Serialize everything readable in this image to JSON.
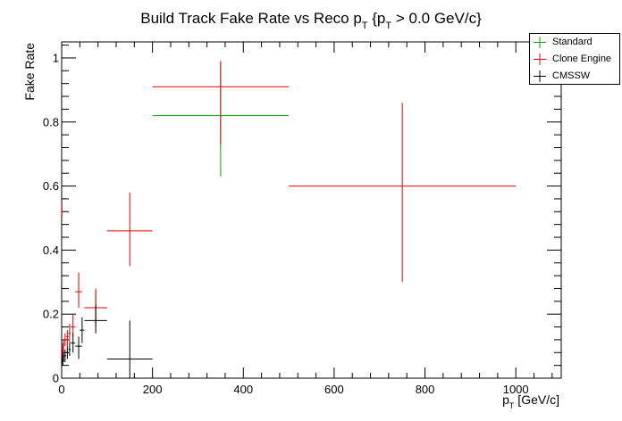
{
  "chart_data": {
    "type": "scatter",
    "title": {
      "main": "Build Track Fake Rate vs Reco p",
      "sub": "T",
      "tail": " {p",
      "sub2": "T",
      "tail2": " > 0.0 GeV/c}"
    },
    "xlabel": {
      "main": "p",
      "sub": "T",
      "tail": " [GeV/c]"
    },
    "ylabel": "Fake Rate",
    "xlim": [
      0,
      1100
    ],
    "ylim": [
      0,
      1.05
    ],
    "x_ticks": [
      0,
      200,
      400,
      600,
      800,
      1000
    ],
    "y_ticks": [
      0,
      0.2,
      0.4,
      0.6,
      0.8,
      1
    ],
    "x_tick_labels": [
      "0",
      "200",
      "400",
      "600",
      "800",
      "1000"
    ],
    "y_tick_labels": [
      "0",
      "0.2",
      "0.4",
      "0.6",
      "0.8",
      "1"
    ],
    "grid": false,
    "legend_position": "top-right",
    "series": [
      {
        "name": "Standard",
        "color": "#00aa00",
        "points": [
          {
            "x": 350,
            "xlo": 200,
            "xhi": 500,
            "y": 0.82,
            "ylo": 0.63,
            "yhi": 0.99
          },
          {
            "x": 75,
            "xlo": 50,
            "xhi": 100,
            "y": 0.22,
            "ylo": 0.17,
            "yhi": 0.27
          }
        ]
      },
      {
        "name": "Clone Engine",
        "color": "#dd0000",
        "points": [
          {
            "x": 750,
            "xlo": 500,
            "xhi": 1000,
            "y": 0.6,
            "ylo": 0.3,
            "yhi": 0.86
          },
          {
            "x": 350,
            "xlo": 200,
            "xhi": 500,
            "y": 0.91,
            "ylo": 0.73,
            "yhi": 0.99
          },
          {
            "x": 150,
            "xlo": 100,
            "xhi": 200,
            "y": 0.46,
            "ylo": 0.35,
            "yhi": 0.58
          },
          {
            "x": 75,
            "xlo": 50,
            "xhi": 100,
            "y": 0.22,
            "ylo": 0.16,
            "yhi": 0.28
          },
          {
            "x": 37.5,
            "xlo": 30,
            "xhi": 45,
            "y": 0.27,
            "ylo": 0.22,
            "yhi": 0.33
          },
          {
            "x": 25,
            "xlo": 20,
            "xhi": 30,
            "y": 0.16,
            "ylo": 0.13,
            "yhi": 0.2
          },
          {
            "x": 17.5,
            "xlo": 15,
            "xhi": 20,
            "y": 0.14,
            "ylo": 0.11,
            "yhi": 0.17
          },
          {
            "x": 12.5,
            "xlo": 10,
            "xhi": 15,
            "y": 0.13,
            "ylo": 0.1,
            "yhi": 0.15
          },
          {
            "x": 7.5,
            "xlo": 5,
            "xhi": 10,
            "y": 0.12,
            "ylo": 0.1,
            "yhi": 0.14
          },
          {
            "x": 4,
            "xlo": 3,
            "xhi": 5,
            "y": 0.1,
            "ylo": 0.08,
            "yhi": 0.12
          },
          {
            "x": 2.5,
            "xlo": 2,
            "xhi": 3,
            "y": 0.09,
            "ylo": 0.07,
            "yhi": 0.11
          },
          {
            "x": 1.5,
            "xlo": 1,
            "xhi": 2,
            "y": 0.07,
            "ylo": 0.06,
            "yhi": 0.09
          },
          {
            "x": 0.5,
            "xlo": 0,
            "xhi": 1,
            "y": 0.52,
            "ylo": 0.5,
            "yhi": 0.55
          }
        ]
      },
      {
        "name": "CMSSW",
        "color": "#000000",
        "points": [
          {
            "x": 150,
            "xlo": 100,
            "xhi": 200,
            "y": 0.06,
            "ylo": 0.0,
            "yhi": 0.18
          },
          {
            "x": 75,
            "xlo": 50,
            "xhi": 100,
            "y": 0.18,
            "ylo": 0.14,
            "yhi": 0.23
          },
          {
            "x": 45,
            "xlo": 40,
            "xhi": 50,
            "y": 0.15,
            "ylo": 0.11,
            "yhi": 0.19
          },
          {
            "x": 37.5,
            "xlo": 30,
            "xhi": 45,
            "y": 0.1,
            "ylo": 0.06,
            "yhi": 0.13
          },
          {
            "x": 25,
            "xlo": 20,
            "xhi": 30,
            "y": 0.11,
            "ylo": 0.08,
            "yhi": 0.14
          },
          {
            "x": 17.5,
            "xlo": 15,
            "xhi": 20,
            "y": 0.09,
            "ylo": 0.07,
            "yhi": 0.11
          },
          {
            "x": 12.5,
            "xlo": 10,
            "xhi": 15,
            "y": 0.08,
            "ylo": 0.06,
            "yhi": 0.1
          },
          {
            "x": 7.5,
            "xlo": 5,
            "xhi": 10,
            "y": 0.07,
            "ylo": 0.05,
            "yhi": 0.09
          },
          {
            "x": 4,
            "xlo": 3,
            "xhi": 5,
            "y": 0.06,
            "ylo": 0.05,
            "yhi": 0.08
          },
          {
            "x": 2.5,
            "xlo": 2,
            "xhi": 3,
            "y": 0.05,
            "ylo": 0.04,
            "yhi": 0.07
          },
          {
            "x": 1.5,
            "xlo": 1,
            "xhi": 2,
            "y": 0.05,
            "ylo": 0.04,
            "yhi": 0.06
          }
        ]
      }
    ]
  }
}
